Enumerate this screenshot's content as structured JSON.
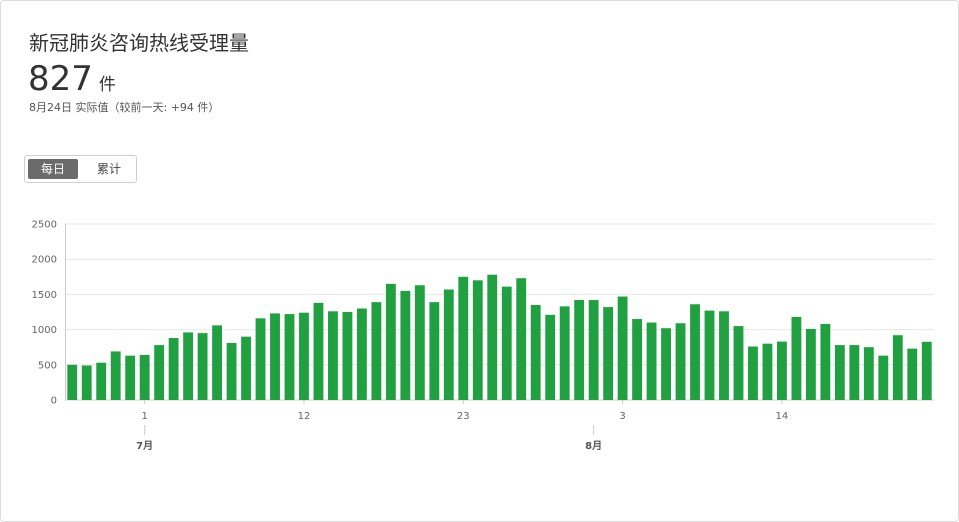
{
  "header": {
    "title": "新冠肺炎咨询热线受理量",
    "value": "827",
    "unit": "件",
    "note": "8月24日 实际值（较前一天: +94 件）"
  },
  "toggle": {
    "daily_label": "每日",
    "cumulative_label": "累计"
  },
  "colors": {
    "bar": "#21a041",
    "grid": "#e6e6e6",
    "axis": "#cccccc"
  },
  "chart_data": {
    "type": "bar",
    "title": "",
    "xlabel": "",
    "ylabel": "",
    "ylim": [
      0,
      2500
    ],
    "yticks": [
      0,
      500,
      1000,
      1500,
      2000,
      2500
    ],
    "ytick_labels": [
      "0",
      "500",
      "1000",
      "1500",
      "2000",
      "2500"
    ],
    "values": [
      500,
      490,
      530,
      690,
      630,
      640,
      780,
      880,
      960,
      950,
      1060,
      810,
      900,
      1160,
      1230,
      1220,
      1240,
      1380,
      1260,
      1250,
      1300,
      1390,
      1650,
      1550,
      1630,
      1390,
      1570,
      1750,
      1700,
      1780,
      1610,
      1730,
      1350,
      1210,
      1330,
      1420,
      1420,
      1320,
      1470,
      1150,
      1100,
      1020,
      1090,
      1360,
      1270,
      1260,
      1050,
      760,
      800,
      830,
      1180,
      1010,
      1080,
      780,
      780,
      750,
      630,
      920,
      730,
      827
    ],
    "xticks": [
      {
        "index": 5,
        "label": "1"
      },
      {
        "index": 16,
        "label": "12"
      },
      {
        "index": 27,
        "label": "23"
      },
      {
        "index": 38,
        "label": "3"
      },
      {
        "index": 49,
        "label": "14"
      }
    ],
    "months": [
      {
        "index": 5,
        "label": "7月"
      },
      {
        "index": 36,
        "label": "8月"
      }
    ]
  }
}
